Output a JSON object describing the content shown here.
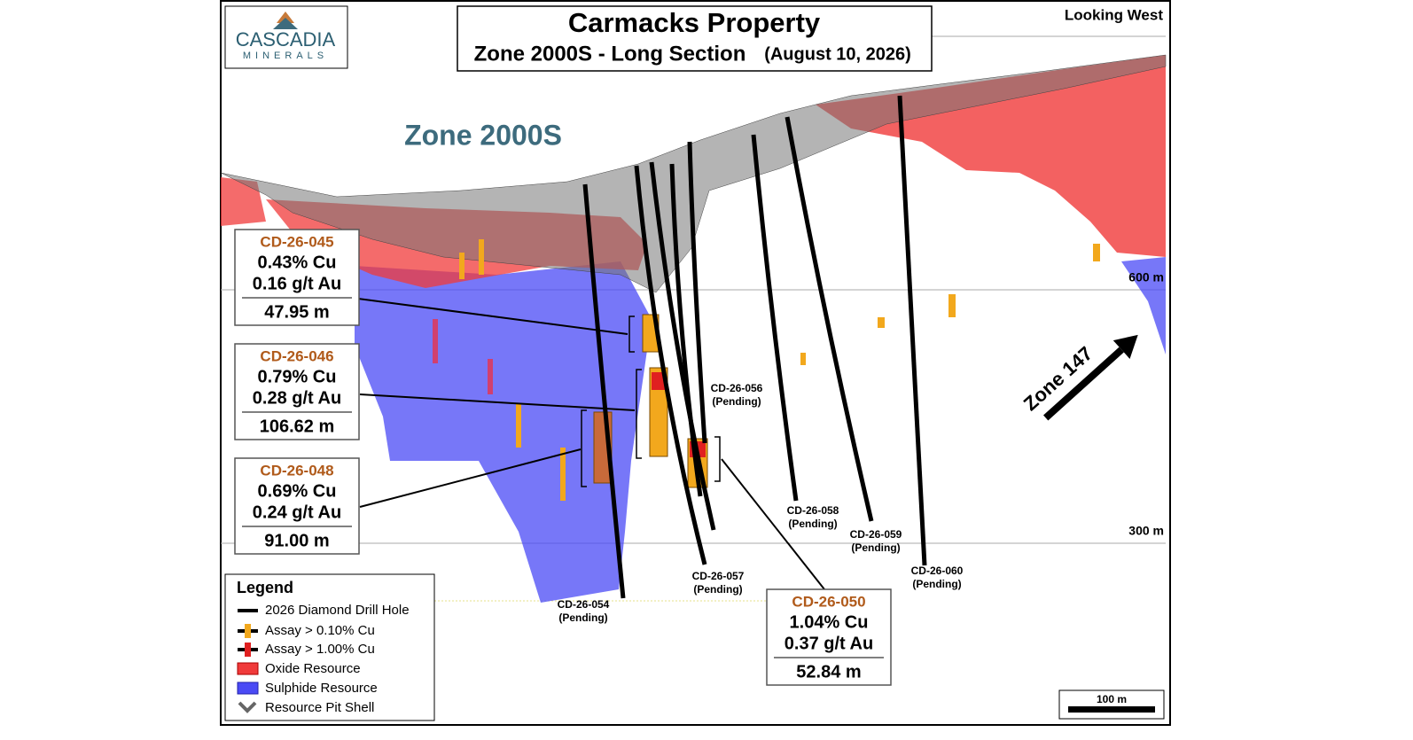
{
  "header": {
    "title": "Carmacks Property",
    "subtitle": "Zone 2000S - Long Section",
    "date": "(August 10, 2026)"
  },
  "logo": {
    "name": "CASCADIA",
    "tagline": "MINERALS"
  },
  "view_direction": "Looking West",
  "zone_label": "Zone 2000S",
  "zone_arrow": "Zone 147",
  "elevations": [
    "600 m",
    "300 m"
  ],
  "callouts": [
    {
      "hole": "CD-26-045",
      "cu": "0.43% Cu",
      "au": "0.16 g/t Au",
      "length": "47.95 m"
    },
    {
      "hole": "CD-26-046",
      "cu": "0.79% Cu",
      "au": "0.28 g/t Au",
      "length": "106.62 m"
    },
    {
      "hole": "CD-26-048",
      "cu": "0.69% Cu",
      "au": "0.24 g/t Au",
      "length": "91.00 m"
    },
    {
      "hole": "CD-26-050",
      "cu": "1.04% Cu",
      "au": "0.37 g/t Au",
      "length": "52.84 m"
    }
  ],
  "drill_holes": [
    {
      "label": "CD-26-054",
      "status": "(Pending)"
    },
    {
      "label": "CD-26-056",
      "status": "(Pending)"
    },
    {
      "label": "CD-26-057",
      "status": "(Pending)"
    },
    {
      "label": "CD-26-058",
      "status": "(Pending)"
    },
    {
      "label": "CD-26-059",
      "status": "(Pending)"
    },
    {
      "label": "CD-26-060",
      "status": "(Pending)"
    }
  ],
  "legend": {
    "title": "Legend",
    "items": [
      "2026 Diamond Drill Hole",
      "Assay > 0.10% Cu",
      "Assay > 1.00% Cu",
      "Oxide Resource",
      "Sulphide Resource",
      "Resource Pit Shell"
    ]
  },
  "scale_bar": "100 m"
}
